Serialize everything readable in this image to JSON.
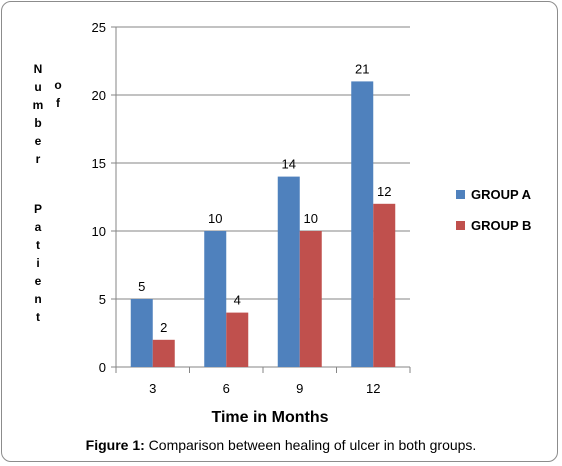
{
  "chart_data": {
    "type": "bar",
    "categories": [
      "3",
      "6",
      "9",
      "12"
    ],
    "series": [
      {
        "name": "GROUP A",
        "values": [
          5,
          10,
          14,
          21
        ],
        "color": "#4f81bd"
      },
      {
        "name": "GROUP B",
        "values": [
          2,
          4,
          10,
          12
        ],
        "color": "#c0504d"
      }
    ],
    "xlabel": "Time in Months",
    "ylabel_words": [
      "Number",
      "of",
      "Patient"
    ],
    "ylim": [
      0,
      25
    ],
    "yticks": [
      0,
      5,
      10,
      15,
      20,
      25
    ],
    "grid": true,
    "legend": "right"
  },
  "caption": {
    "label": "Figure 1:",
    "text": " Comparison between healing of ulcer in both groups."
  }
}
